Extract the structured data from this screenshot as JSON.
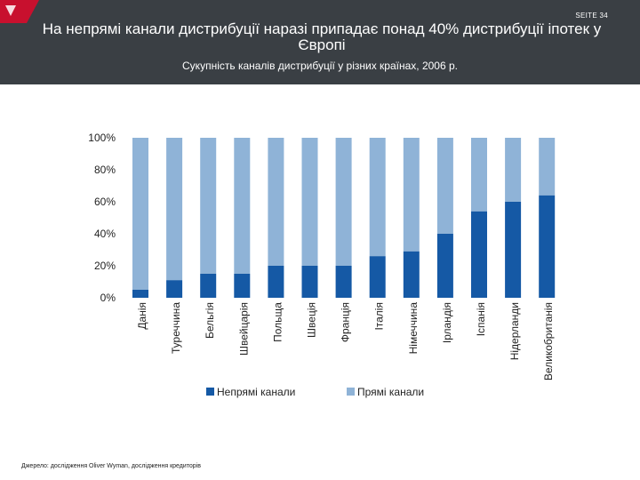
{
  "slide": {
    "page_label": "SEITE 34",
    "title": "На непрямі канали дистрибуції наразі припадає понад 40% дистрибуції іпотек у Європі",
    "subtitle": "Сукупність каналів дистрибуції у різних країнах, 2006 р.",
    "footnote": "Джерело: дослідження Oliver Wyman, дослідження кредиторів"
  },
  "colors": {
    "header_bg": "#3a3f44",
    "indirect": "#1559a5",
    "direct": "#8fb3d7",
    "logo_red": "#c8102e"
  },
  "chart_data": {
    "type": "bar",
    "stacked": true,
    "title": "",
    "xlabel": "",
    "ylabel": "",
    "ylim": [
      0,
      100
    ],
    "yticks": [
      "0%",
      "20%",
      "40%",
      "60%",
      "80%",
      "100%"
    ],
    "categories": [
      "Данія",
      "Туреччина",
      "Бельгія",
      "Швейцарія",
      "Польща",
      "Швеція",
      "Франція",
      "Італія",
      "Німеччина",
      "Ірландія",
      "Іспанія",
      "Нідерланди",
      "Великобританія"
    ],
    "series": [
      {
        "name": "Непрямі канали",
        "values": [
          5,
          11,
          15,
          15,
          20,
          20,
          20,
          26,
          29,
          40,
          54,
          60,
          64
        ]
      },
      {
        "name": "Прямі канали",
        "values": [
          95,
          89,
          85,
          85,
          80,
          80,
          80,
          74,
          71,
          60,
          46,
          40,
          36
        ]
      }
    ],
    "legend_position": "bottom",
    "grid": false
  }
}
